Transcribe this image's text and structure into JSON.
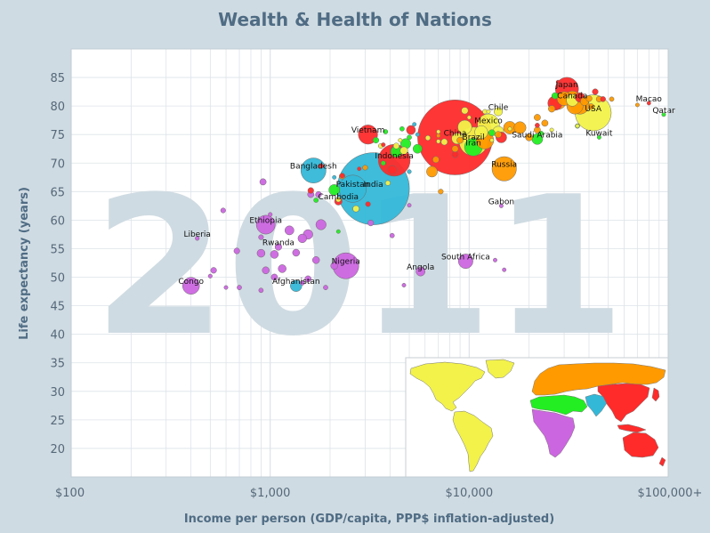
{
  "colors": {
    "background": "#cfdbe2",
    "plot_background": "#ffffff",
    "grid": "#dde3e8",
    "title": "#4f6c84",
    "watermark": "#cfdbe2",
    "regions": {
      "sub_saharan_africa": "#cc66e0",
      "south_asia": "#34b8d8",
      "middle_east_north_africa": "#22ee22",
      "europe_central_asia": "#ff9a00",
      "east_asia_pacific": "#ff2b2b",
      "america": "#f2f24a"
    }
  },
  "chart_data": {
    "type": "scatter",
    "title": "Wealth & Health of Nations",
    "xlabel": "Income per person (GDP/capita, PPP$ inflation-adjusted)",
    "ylabel": "Life expectancy (years)",
    "x_scale": "log",
    "xlim": [
      100,
      100000
    ],
    "ylim": [
      15,
      90
    ],
    "x_ticks": [
      {
        "value": 100,
        "label": "$100"
      },
      {
        "value": 1000,
        "label": "$1,000"
      },
      {
        "value": 10000,
        "label": "$10,000"
      },
      {
        "value": 100000,
        "label": "$100,000+"
      }
    ],
    "y_ticks": [
      20,
      25,
      30,
      35,
      40,
      45,
      50,
      55,
      60,
      65,
      70,
      75,
      80,
      85
    ],
    "grid": true,
    "year_watermark": "2011",
    "legend": "world map inset (bottom-right) colored by region",
    "points": [
      {
        "label": "Japan",
        "x": 31000,
        "y": 83,
        "size": 127,
        "region": "east_asia_pacific"
      },
      {
        "label": "Canada",
        "x": 33000,
        "y": 81,
        "size": 34,
        "region": "america"
      },
      {
        "label": "USA",
        "x": 42000,
        "y": 78.8,
        "size": 312,
        "region": "america"
      },
      {
        "label": "Macao",
        "x": 80000,
        "y": 80.5,
        "size": 0.6,
        "region": "east_asia_pacific"
      },
      {
        "label": "Qatar",
        "x": 95000,
        "y": 78.5,
        "size": 1.9,
        "region": "middle_east_north_africa"
      },
      {
        "label": "Kuwait",
        "x": 45000,
        "y": 74.5,
        "size": 3,
        "region": "middle_east_north_africa"
      },
      {
        "label": "Chile",
        "x": 14000,
        "y": 79,
        "size": 17,
        "region": "america"
      },
      {
        "label": "Mexico",
        "x": 12500,
        "y": 76.7,
        "size": 115,
        "region": "america"
      },
      {
        "label": "Saudi Arabia",
        "x": 22000,
        "y": 74.2,
        "size": 28,
        "region": "middle_east_north_africa"
      },
      {
        "label": "China",
        "x": 8500,
        "y": 74.5,
        "size": 1340,
        "region": "east_asia_pacific"
      },
      {
        "label": "Brazil",
        "x": 10500,
        "y": 73.8,
        "size": 197,
        "region": "america"
      },
      {
        "label": "Iran",
        "x": 10500,
        "y": 72.8,
        "size": 75,
        "region": "middle_east_north_africa"
      },
      {
        "label": "Russia",
        "x": 15000,
        "y": 69,
        "size": 142,
        "region": "europe_central_asia"
      },
      {
        "label": "Vietnam",
        "x": 3100,
        "y": 75,
        "size": 88,
        "region": "east_asia_pacific"
      },
      {
        "label": "Indonesia",
        "x": 4200,
        "y": 70.5,
        "size": 242,
        "region": "east_asia_pacific"
      },
      {
        "label": "Bangladesh",
        "x": 1650,
        "y": 68.7,
        "size": 150,
        "region": "south_asia"
      },
      {
        "label": "India",
        "x": 3300,
        "y": 65.5,
        "size": 1241,
        "region": "south_asia"
      },
      {
        "label": "Pakistan",
        "x": 2600,
        "y": 65.5,
        "size": 177,
        "region": "south_asia"
      },
      {
        "label": "Cambodia",
        "x": 2200,
        "y": 63.3,
        "size": 14,
        "region": "east_asia_pacific"
      },
      {
        "label": "Gabon",
        "x": 14500,
        "y": 62.5,
        "size": 1.5,
        "region": "sub_saharan_africa"
      },
      {
        "label": "Ethiopia",
        "x": 950,
        "y": 59.2,
        "size": 85,
        "region": "sub_saharan_africa"
      },
      {
        "label": "Liberia",
        "x": 430,
        "y": 56.8,
        "size": 4,
        "region": "sub_saharan_africa"
      },
      {
        "label": "Rwanda",
        "x": 1100,
        "y": 55.3,
        "size": 11,
        "region": "sub_saharan_africa"
      },
      {
        "label": "South Africa",
        "x": 9600,
        "y": 52.8,
        "size": 51,
        "region": "sub_saharan_africa"
      },
      {
        "label": "Nigeria",
        "x": 2400,
        "y": 52,
        "size": 162,
        "region": "sub_saharan_africa"
      },
      {
        "label": "Angola",
        "x": 5700,
        "y": 51,
        "size": 20,
        "region": "sub_saharan_africa"
      },
      {
        "label": "Afghanistan",
        "x": 1350,
        "y": 48.5,
        "size": 32,
        "region": "south_asia"
      },
      {
        "label": "Congo",
        "x": 400,
        "y": 48.5,
        "size": 68,
        "region": "sub_saharan_africa"
      },
      {
        "x": 1800,
        "y": 59.2,
        "size": 25,
        "region": "sub_saharan_africa"
      },
      {
        "x": 1550,
        "y": 57.5,
        "size": 22,
        "region": "sub_saharan_africa"
      },
      {
        "x": 1250,
        "y": 58.2,
        "size": 20,
        "region": "sub_saharan_africa"
      },
      {
        "x": 1450,
        "y": 56.8,
        "size": 18,
        "region": "sub_saharan_africa"
      },
      {
        "x": 1350,
        "y": 54.3,
        "size": 12,
        "region": "sub_saharan_africa"
      },
      {
        "x": 1050,
        "y": 54.0,
        "size": 15,
        "region": "sub_saharan_africa"
      },
      {
        "x": 900,
        "y": 54.2,
        "size": 15,
        "region": "sub_saharan_africa"
      },
      {
        "x": 1150,
        "y": 51.5,
        "size": 15,
        "region": "sub_saharan_africa"
      },
      {
        "x": 950,
        "y": 51.2,
        "size": 12,
        "region": "sub_saharan_africa"
      },
      {
        "x": 1050,
        "y": 50.0,
        "size": 10,
        "region": "sub_saharan_africa"
      },
      {
        "x": 1550,
        "y": 49.7,
        "size": 10,
        "region": "sub_saharan_africa"
      },
      {
        "x": 1700,
        "y": 53.0,
        "size": 12,
        "region": "sub_saharan_africa"
      },
      {
        "x": 2100,
        "y": 52.0,
        "size": 12,
        "region": "sub_saharan_africa"
      },
      {
        "x": 1450,
        "y": 49.0,
        "size": 5,
        "region": "sub_saharan_africa"
      },
      {
        "x": 1900,
        "y": 48.2,
        "size": 5,
        "region": "sub_saharan_africa"
      },
      {
        "x": 900,
        "y": 47.7,
        "size": 5,
        "region": "sub_saharan_africa"
      },
      {
        "x": 700,
        "y": 48.2,
        "size": 5,
        "region": "sub_saharan_africa"
      },
      {
        "x": 600,
        "y": 48.2,
        "size": 3,
        "region": "sub_saharan_africa"
      },
      {
        "x": 520,
        "y": 51.2,
        "size": 8,
        "region": "sub_saharan_africa"
      },
      {
        "x": 500,
        "y": 50.2,
        "size": 4,
        "region": "sub_saharan_africa"
      },
      {
        "x": 680,
        "y": 54.6,
        "size": 8,
        "region": "sub_saharan_africa"
      },
      {
        "x": 900,
        "y": 57.0,
        "size": 6,
        "region": "sub_saharan_africa"
      },
      {
        "x": 580,
        "y": 61.7,
        "size": 6,
        "region": "sub_saharan_africa"
      },
      {
        "x": 920,
        "y": 66.7,
        "size": 10,
        "region": "sub_saharan_africa"
      },
      {
        "x": 1000,
        "y": 61.0,
        "size": 4,
        "region": "sub_saharan_africa"
      },
      {
        "x": 1750,
        "y": 64.5,
        "size": 8,
        "region": "sub_saharan_africa"
      },
      {
        "x": 3200,
        "y": 59.5,
        "size": 8,
        "region": "sub_saharan_africa"
      },
      {
        "x": 4100,
        "y": 57.3,
        "size": 5,
        "region": "sub_saharan_africa"
      },
      {
        "x": 4700,
        "y": 48.6,
        "size": 2,
        "region": "sub_saharan_africa"
      },
      {
        "x": 5000,
        "y": 62.6,
        "size": 2,
        "region": "sub_saharan_africa"
      },
      {
        "x": 13500,
        "y": 53.0,
        "size": 2,
        "region": "sub_saharan_africa"
      },
      {
        "x": 15000,
        "y": 51.3,
        "size": 2,
        "region": "sub_saharan_africa"
      },
      {
        "x": 1600,
        "y": 64.5,
        "size": 10,
        "region": "sub_saharan_africa"
      },
      {
        "x": 1800,
        "y": 69.5,
        "size": 6,
        "region": "east_asia_pacific"
      },
      {
        "x": 1600,
        "y": 65.2,
        "size": 8,
        "region": "east_asia_pacific"
      },
      {
        "x": 2300,
        "y": 67.8,
        "size": 6,
        "region": "east_asia_pacific"
      },
      {
        "x": 3100,
        "y": 62.8,
        "size": 6,
        "region": "east_asia_pacific"
      },
      {
        "x": 4100,
        "y": 68.8,
        "size": 20,
        "region": "east_asia_pacific"
      },
      {
        "x": 4300,
        "y": 72.2,
        "size": 30,
        "region": "east_asia_pacific"
      },
      {
        "x": 5100,
        "y": 75.8,
        "size": 20,
        "region": "east_asia_pacific"
      },
      {
        "x": 8500,
        "y": 71.5,
        "size": 10,
        "region": "east_asia_pacific"
      },
      {
        "x": 14500,
        "y": 74.5,
        "size": 28,
        "region": "east_asia_pacific"
      },
      {
        "x": 27000,
        "y": 80.5,
        "size": 50,
        "region": "east_asia_pacific"
      },
      {
        "x": 36000,
        "y": 81.5,
        "size": 22,
        "region": "east_asia_pacific"
      },
      {
        "x": 47000,
        "y": 81.2,
        "size": 7,
        "region": "east_asia_pacific"
      },
      {
        "x": 43000,
        "y": 82.5,
        "size": 8,
        "region": "east_asia_pacific"
      },
      {
        "x": 22000,
        "y": 76.6,
        "size": 5,
        "region": "east_asia_pacific"
      },
      {
        "x": 3700,
        "y": 73.2,
        "size": 4,
        "region": "east_asia_pacific"
      },
      {
        "x": 2800,
        "y": 69.0,
        "size": 3,
        "region": "east_asia_pacific"
      },
      {
        "x": 28000,
        "y": 84.2,
        "size": 2,
        "region": "east_asia_pacific"
      },
      {
        "x": 2100,
        "y": 67.5,
        "size": 2,
        "region": "south_asia"
      },
      {
        "x": 5000,
        "y": 68.5,
        "size": 4,
        "region": "south_asia"
      },
      {
        "x": 5500,
        "y": 75.0,
        "size": 3,
        "region": "south_asia"
      },
      {
        "x": 5300,
        "y": 76.8,
        "size": 2,
        "region": "south_asia"
      },
      {
        "x": 2100,
        "y": 65.3,
        "size": 28,
        "region": "middle_east_north_africa"
      },
      {
        "x": 1700,
        "y": 63.5,
        "size": 5,
        "region": "middle_east_north_africa"
      },
      {
        "x": 2200,
        "y": 58.0,
        "size": 2,
        "region": "middle_east_north_africa"
      },
      {
        "x": 3700,
        "y": 70.0,
        "size": 5,
        "region": "middle_east_north_africa"
      },
      {
        "x": 4300,
        "y": 72.0,
        "size": 30,
        "region": "middle_east_north_africa"
      },
      {
        "x": 5500,
        "y": 72.5,
        "size": 20,
        "region": "middle_east_north_africa"
      },
      {
        "x": 4800,
        "y": 73.4,
        "size": 25,
        "region": "middle_east_north_africa"
      },
      {
        "x": 3400,
        "y": 74.0,
        "size": 8,
        "region": "middle_east_north_africa"
      },
      {
        "x": 3800,
        "y": 75.5,
        "size": 5,
        "region": "middle_east_north_africa"
      },
      {
        "x": 4600,
        "y": 76.0,
        "size": 5,
        "region": "middle_east_north_africa"
      },
      {
        "x": 5000,
        "y": 74.5,
        "size": 5,
        "region": "middle_east_north_africa"
      },
      {
        "x": 13000,
        "y": 75.3,
        "size": 10,
        "region": "middle_east_north_africa"
      },
      {
        "x": 23000,
        "y": 75.2,
        "size": 5,
        "region": "middle_east_north_africa"
      },
      {
        "x": 27000,
        "y": 81.8,
        "size": 10,
        "region": "middle_east_north_africa"
      },
      {
        "x": 35000,
        "y": 76.5,
        "size": 5,
        "region": "middle_east_north_africa"
      },
      {
        "x": 7000,
        "y": 74.8,
        "size": 2,
        "region": "europe_central_asia"
      },
      {
        "x": 3000,
        "y": 69.2,
        "size": 6,
        "region": "europe_central_asia"
      },
      {
        "x": 2300,
        "y": 67.7,
        "size": 8,
        "region": "europe_central_asia"
      },
      {
        "x": 6500,
        "y": 68.5,
        "size": 28,
        "region": "europe_central_asia"
      },
      {
        "x": 7200,
        "y": 65.0,
        "size": 6,
        "region": "europe_central_asia"
      },
      {
        "x": 6800,
        "y": 70.6,
        "size": 10,
        "region": "europe_central_asia"
      },
      {
        "x": 8500,
        "y": 72.5,
        "size": 10,
        "region": "europe_central_asia"
      },
      {
        "x": 9000,
        "y": 74.0,
        "size": 10,
        "region": "europe_central_asia"
      },
      {
        "x": 12000,
        "y": 74.0,
        "size": 74,
        "region": "europe_central_asia"
      },
      {
        "x": 14000,
        "y": 75.0,
        "size": 10,
        "region": "europe_central_asia"
      },
      {
        "x": 16000,
        "y": 76.2,
        "size": 38,
        "region": "europe_central_asia"
      },
      {
        "x": 18000,
        "y": 76.2,
        "size": 35,
        "region": "europe_central_asia"
      },
      {
        "x": 20000,
        "y": 74.5,
        "size": 12,
        "region": "europe_central_asia"
      },
      {
        "x": 22000,
        "y": 75.8,
        "size": 10,
        "region": "europe_central_asia"
      },
      {
        "x": 24000,
        "y": 77.0,
        "size": 10,
        "region": "europe_central_asia"
      },
      {
        "x": 26000,
        "y": 79.5,
        "size": 11,
        "region": "europe_central_asia"
      },
      {
        "x": 28000,
        "y": 80.8,
        "size": 60,
        "region": "europe_central_asia"
      },
      {
        "x": 30000,
        "y": 81.3,
        "size": 47,
        "region": "europe_central_asia"
      },
      {
        "x": 33000,
        "y": 81.2,
        "size": 63,
        "region": "europe_central_asia"
      },
      {
        "x": 34000,
        "y": 80.0,
        "size": 63,
        "region": "europe_central_asia"
      },
      {
        "x": 36000,
        "y": 80.2,
        "size": 82,
        "region": "europe_central_asia"
      },
      {
        "x": 38000,
        "y": 80.8,
        "size": 17,
        "region": "europe_central_asia"
      },
      {
        "x": 40000,
        "y": 81.3,
        "size": 9,
        "region": "europe_central_asia"
      },
      {
        "x": 41000,
        "y": 79.9,
        "size": 8,
        "region": "europe_central_asia"
      },
      {
        "x": 45000,
        "y": 81.2,
        "size": 8,
        "region": "europe_central_asia"
      },
      {
        "x": 52000,
        "y": 81.2,
        "size": 5,
        "region": "europe_central_asia"
      },
      {
        "x": 70000,
        "y": 80.2,
        "size": 1,
        "region": "europe_central_asia"
      },
      {
        "x": 22000,
        "y": 78.0,
        "size": 10,
        "region": "europe_central_asia"
      },
      {
        "x": 2200,
        "y": 63.6,
        "size": 6,
        "region": "america"
      },
      {
        "x": 2700,
        "y": 62.0,
        "size": 10,
        "region": "america"
      },
      {
        "x": 4700,
        "y": 72.2,
        "size": 14,
        "region": "america"
      },
      {
        "x": 4300,
        "y": 73.0,
        "size": 8,
        "region": "america"
      },
      {
        "x": 3600,
        "y": 73.0,
        "size": 6,
        "region": "america"
      },
      {
        "x": 3900,
        "y": 66.5,
        "size": 6,
        "region": "america"
      },
      {
        "x": 6200,
        "y": 74.4,
        "size": 6,
        "region": "america"
      },
      {
        "x": 7500,
        "y": 73.7,
        "size": 10,
        "region": "america"
      },
      {
        "x": 9500,
        "y": 79.2,
        "size": 11,
        "region": "america"
      },
      {
        "x": 12000,
        "y": 79.0,
        "size": 5,
        "region": "america"
      },
      {
        "x": 9500,
        "y": 76.3,
        "size": 47,
        "region": "america"
      },
      {
        "x": 11500,
        "y": 75.4,
        "size": 41,
        "region": "america"
      },
      {
        "x": 8700,
        "y": 74.3,
        "size": 29,
        "region": "america"
      },
      {
        "x": 10000,
        "y": 78.0,
        "size": 3,
        "region": "america"
      },
      {
        "x": 14000,
        "y": 75.5,
        "size": 29,
        "region": "america"
      },
      {
        "x": 16000,
        "y": 76.0,
        "size": 3,
        "region": "america"
      },
      {
        "x": 26000,
        "y": 75.8,
        "size": 1,
        "region": "america"
      },
      {
        "x": 35000,
        "y": 76.5,
        "size": 2,
        "region": "america"
      },
      {
        "x": 7000,
        "y": 73.8,
        "size": 4,
        "region": "america"
      },
      {
        "x": 7000,
        "y": 75.5,
        "size": 2,
        "region": "america"
      },
      {
        "x": 12500,
        "y": 79.0,
        "size": 2,
        "region": "america"
      },
      {
        "x": 13000,
        "y": 74.0,
        "size": 2,
        "region": "america"
      },
      {
        "x": 4500,
        "y": 74.0,
        "size": 2,
        "region": "america"
      }
    ]
  }
}
